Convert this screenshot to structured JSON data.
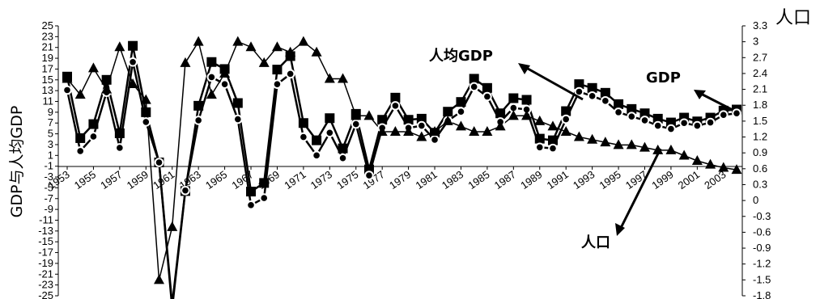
{
  "chart_data": {
    "type": "line",
    "ylabel": "GDP与人均GDP",
    "y2label": "人口",
    "ylim": [
      -25,
      25
    ],
    "y2lim": [
      -1.8,
      3.3
    ],
    "left_ticks": [
      "25",
      "23",
      "21",
      "19",
      "17",
      "15",
      "13",
      "11",
      "9",
      "7",
      "5",
      "3",
      "1",
      "-1",
      "-3",
      "-5",
      "-7",
      "-9",
      "-11",
      "-13",
      "-15",
      "-17",
      "-19",
      "-21",
      "-23",
      "-25"
    ],
    "right_ticks": [
      "3.3",
      "3",
      "2.7",
      "2.4",
      "2.1",
      "1.8",
      "1.5",
      "1.2",
      "0.9",
      "0.6",
      "0.3",
      "0",
      "-0.3",
      "-0.6",
      "-0.9",
      "-1.2",
      "-1.5",
      "-1.8"
    ],
    "x_tick_labels": [
      "1953",
      "1955",
      "1957",
      "1959",
      "1961",
      "1963",
      "1965",
      "1967",
      "1969",
      "1971",
      "1973",
      "1975",
      "1977",
      "1979",
      "1981",
      "1983",
      "1985",
      "1987",
      "1989",
      "1991",
      "1993",
      "1995",
      "1997",
      "1999",
      "2001",
      "2003"
    ],
    "annotations": [
      {
        "text": "人均GDP"
      },
      {
        "text": "GDP"
      },
      {
        "text": "人口"
      }
    ],
    "series": [
      {
        "name": "GDP",
        "axis": "left",
        "marker": "square",
        "x": [
          1953,
          1954,
          1955,
          1956,
          1957,
          1958,
          1959,
          1960,
          1961,
          1962,
          1963,
          1964,
          1965,
          1966,
          1967,
          1968,
          1969,
          1970,
          1971,
          1972,
          1973,
          1974,
          1975,
          1976,
          1977,
          1978,
          1979,
          1980,
          1981,
          1982,
          1983,
          1984,
          1985,
          1986,
          1987,
          1988,
          1989,
          1990,
          1991,
          1992,
          1993,
          1994,
          1995,
          1996,
          1997,
          1998,
          1999,
          2000,
          2001,
          2002,
          2003,
          2004
        ],
        "values": [
          15.6,
          4.2,
          6.8,
          15.0,
          5.1,
          21.3,
          9.0,
          -0.3,
          -27.3,
          -5.6,
          10.2,
          18.3,
          17.0,
          10.7,
          -5.7,
          -4.1,
          16.9,
          19.4,
          7.0,
          3.8,
          7.9,
          2.3,
          8.7,
          -1.6,
          7.6,
          11.7,
          7.6,
          7.8,
          5.2,
          9.1,
          10.9,
          15.2,
          13.5,
          8.8,
          11.6,
          11.3,
          4.1,
          3.8,
          9.2,
          14.2,
          13.5,
          12.6,
          10.5,
          9.6,
          8.8,
          7.8,
          7.1,
          8.0,
          7.3,
          8.0,
          9.3,
          9.5
        ]
      },
      {
        "name": "人均GDP",
        "axis": "left",
        "marker": "circle",
        "x": [
          1953,
          1954,
          1955,
          1956,
          1957,
          1958,
          1959,
          1960,
          1961,
          1962,
          1963,
          1964,
          1965,
          1966,
          1967,
          1968,
          1969,
          1970,
          1971,
          1972,
          1973,
          1974,
          1975,
          1976,
          1977,
          1978,
          1979,
          1980,
          1981,
          1982,
          1983,
          1984,
          1985,
          1986,
          1987,
          1988,
          1989,
          1990,
          1991,
          1992,
          1993,
          1994,
          1995,
          1996,
          1997,
          1998,
          1999,
          2000,
          2001,
          2002,
          2003,
          2004
        ],
        "values": [
          13.1,
          1.8,
          4.5,
          12.7,
          2.4,
          18.3,
          7.2,
          -0.3,
          -26.6,
          -5.5,
          7.5,
          15.5,
          14.2,
          7.7,
          -8.2,
          -6.9,
          14.2,
          16.1,
          4.4,
          1.0,
          5.2,
          0.5,
          6.8,
          -2.7,
          6.1,
          10.2,
          6.1,
          6.5,
          3.9,
          7.4,
          9.1,
          13.7,
          11.9,
          7.2,
          9.8,
          9.5,
          2.5,
          2.3,
          7.7,
          12.8,
          12.0,
          11.1,
          9.0,
          8.2,
          7.5,
          6.5,
          5.9,
          7.0,
          6.5,
          7.1,
          8.5,
          8.8
        ]
      },
      {
        "name": "人口",
        "axis": "right",
        "marker": "triangle",
        "x": [
          1953,
          1954,
          1955,
          1956,
          1957,
          1958,
          1959,
          1960,
          1961,
          1962,
          1963,
          1964,
          1965,
          1966,
          1967,
          1968,
          1969,
          1970,
          1971,
          1972,
          1973,
          1974,
          1975,
          1976,
          1977,
          1978,
          1979,
          1980,
          1981,
          1982,
          1983,
          1984,
          1985,
          1986,
          1987,
          1988,
          1989,
          1990,
          1991,
          1992,
          1993,
          1994,
          1995,
          1996,
          1997,
          1998,
          1999,
          2000,
          2001,
          2002,
          2003,
          2004
        ],
        "values": [
          2.3,
          2.0,
          2.5,
          2.1,
          2.9,
          2.2,
          1.9,
          -1.5,
          -0.5,
          2.6,
          3.0,
          2.0,
          2.4,
          3.0,
          2.9,
          2.6,
          2.9,
          2.8,
          3.0,
          2.8,
          2.3,
          2.3,
          1.6,
          1.6,
          1.3,
          1.3,
          1.3,
          1.2,
          1.3,
          1.5,
          1.4,
          1.3,
          1.3,
          1.4,
          1.6,
          1.6,
          1.5,
          1.4,
          1.3,
          1.2,
          1.15,
          1.1,
          1.05,
          1.05,
          1.0,
          0.95,
          0.95,
          0.85,
          0.75,
          0.68,
          0.62,
          0.58
        ]
      }
    ]
  }
}
